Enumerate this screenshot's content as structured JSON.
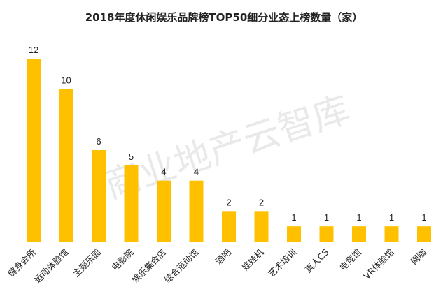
{
  "watermark": "商业地产云智库",
  "chart_data": {
    "type": "bar",
    "title": "2018年度休闲娱乐品牌榜TOP50细分业态上榜数量（家）",
    "categories": [
      "健身会所",
      "运动体验馆",
      "主题乐园",
      "电影院",
      "娱乐集合店",
      "综合运动馆",
      "酒吧",
      "娃娃机",
      "艺术培训",
      "真人CS",
      "电竞馆",
      "VR体验馆",
      "网咖"
    ],
    "values": [
      12,
      10,
      6,
      5,
      4,
      4,
      2,
      2,
      1,
      1,
      1,
      1,
      1
    ],
    "xlabel": "",
    "ylabel": "",
    "ylim": [
      0,
      12
    ],
    "grid": false,
    "legend": "none",
    "bar_color": "#FFC000",
    "axis_color": "#D9D9D9"
  }
}
